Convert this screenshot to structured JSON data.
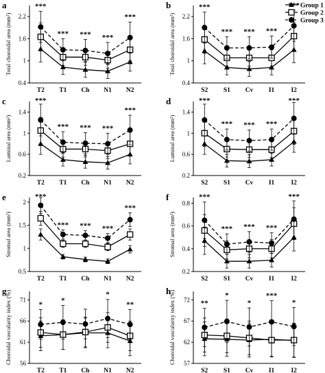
{
  "legend": {
    "entries": [
      {
        "label": "Group 1",
        "marker": "triangle",
        "line": "solid"
      },
      {
        "label": "Group 2",
        "marker": "open-square",
        "line": "solid"
      },
      {
        "label": "Group 3",
        "marker": "circle",
        "line": "dashed"
      }
    ]
  },
  "colors": {
    "ink": "#000000",
    "background": "#ffffff"
  },
  "chart_data": [
    {
      "panel": "a",
      "type": "line",
      "ylabel": "Total choroidal area (mm²)",
      "categories": [
        "T2",
        "T1",
        "Ch",
        "N1",
        "N2"
      ],
      "yticks": [
        0.4,
        1,
        1.6,
        2.2
      ],
      "ylim": [
        0.4,
        2.5
      ],
      "series": [
        {
          "name": "Group 1",
          "values": [
            1.32,
            0.83,
            0.76,
            0.72,
            0.97
          ],
          "errors": [
            0.35,
            0.2,
            0.2,
            0.2,
            0.25
          ]
        },
        {
          "name": "Group 2",
          "values": [
            1.65,
            1.1,
            1.1,
            1.02,
            1.3
          ],
          "errors": [
            0.38,
            0.22,
            0.22,
            0.22,
            0.3
          ]
        },
        {
          "name": "Group 3",
          "values": [
            1.92,
            1.3,
            1.28,
            1.2,
            1.63
          ],
          "errors": [
            0.42,
            0.3,
            0.3,
            0.3,
            0.42
          ]
        }
      ],
      "annotations": [
        "***",
        "***",
        "***",
        "***",
        "***"
      ]
    },
    {
      "panel": "b",
      "type": "line",
      "ylabel": "Total choroidal area (mm²)",
      "categories": [
        "S2",
        "S1",
        "Cv",
        "I1",
        "I2"
      ],
      "yticks": [
        0.4,
        1,
        1.6,
        2.2
      ],
      "ylim": [
        0.4,
        2.5
      ],
      "series": [
        {
          "name": "Group 1",
          "values": [
            1.27,
            0.82,
            0.78,
            0.82,
            1.3
          ],
          "errors": [
            0.35,
            0.2,
            0.2,
            0.2,
            0.35
          ]
        },
        {
          "name": "Group 2",
          "values": [
            1.58,
            1.08,
            1.08,
            1.08,
            1.67
          ],
          "errors": [
            0.38,
            0.22,
            0.22,
            0.22,
            0.38
          ]
        },
        {
          "name": "Group 3",
          "values": [
            1.9,
            1.35,
            1.35,
            1.37,
            1.95
          ],
          "errors": [
            0.42,
            0.3,
            0.3,
            0.3,
            0.42
          ]
        }
      ],
      "annotations": [
        "***",
        "***",
        "***",
        "***",
        "***"
      ]
    },
    {
      "panel": "c",
      "type": "line",
      "ylabel": "Luminal area (mm²)",
      "categories": [
        "T2",
        "T1",
        "Ch",
        "N1",
        "N2"
      ],
      "yticks": [
        0.2,
        0.6,
        1,
        1.4
      ],
      "ylim": [
        0.2,
        1.6
      ],
      "series": [
        {
          "name": "Group 1",
          "values": [
            0.8,
            0.5,
            0.46,
            0.44,
            0.6
          ],
          "errors": [
            0.2,
            0.12,
            0.12,
            0.12,
            0.18
          ]
        },
        {
          "name": "Group 2",
          "values": [
            1.05,
            0.7,
            0.7,
            0.67,
            0.8
          ],
          "errors": [
            0.25,
            0.15,
            0.15,
            0.15,
            0.22
          ]
        },
        {
          "name": "Group 3",
          "values": [
            1.25,
            0.83,
            0.81,
            0.8,
            1.06
          ],
          "errors": [
            0.3,
            0.2,
            0.2,
            0.2,
            0.28
          ]
        }
      ],
      "annotations": [
        "***",
        "***",
        "***",
        "***",
        "***"
      ]
    },
    {
      "panel": "d",
      "type": "line",
      "ylabel": "Luminal area (mm²)",
      "categories": [
        "S2",
        "S1",
        "Cv",
        "I1",
        "I2"
      ],
      "yticks": [
        0.2,
        0.6,
        1,
        1.4
      ],
      "ylim": [
        0.2,
        1.6
      ],
      "series": [
        {
          "name": "Group 1",
          "values": [
            0.8,
            0.48,
            0.47,
            0.5,
            0.84
          ],
          "errors": [
            0.2,
            0.12,
            0.12,
            0.12,
            0.2
          ]
        },
        {
          "name": "Group 2",
          "values": [
            1.0,
            0.7,
            0.69,
            0.69,
            1.04
          ],
          "errors": [
            0.25,
            0.15,
            0.15,
            0.15,
            0.25
          ]
        },
        {
          "name": "Group 3",
          "values": [
            1.25,
            0.88,
            0.86,
            0.88,
            1.28
          ],
          "errors": [
            0.3,
            0.2,
            0.2,
            0.2,
            0.3
          ]
        }
      ],
      "annotations": [
        "***",
        "***",
        "***",
        "***",
        "***"
      ]
    },
    {
      "panel": "e",
      "type": "line",
      "ylabel": "Stromal area (mm²)",
      "categories": [
        "T2",
        "T1",
        "Ch",
        "N1",
        "N2"
      ],
      "yticks": [
        0.5,
        1,
        1.5,
        2
      ],
      "ylim": [
        0.5,
        2.1
      ],
      "series": [
        {
          "name": "Group 1",
          "values": [
            1.3,
            0.82,
            0.76,
            0.72,
            0.98
          ],
          "errors": [
            0.12,
            0.05,
            0.05,
            0.05,
            0.08
          ]
        },
        {
          "name": "Group 2",
          "values": [
            1.65,
            1.1,
            1.1,
            1.03,
            1.3
          ],
          "errors": [
            0.15,
            0.08,
            0.08,
            0.08,
            0.12
          ]
        },
        {
          "name": "Group 3",
          "values": [
            1.93,
            1.3,
            1.28,
            1.22,
            1.62
          ],
          "errors": [
            0.18,
            0.1,
            0.1,
            0.1,
            0.15
          ]
        }
      ],
      "annotations": [
        "***",
        "***",
        "***",
        "***",
        "***"
      ]
    },
    {
      "panel": "f",
      "type": "line",
      "ylabel": "Stromal area (mm²)",
      "categories": [
        "S2",
        "S1",
        "Cv",
        "I1",
        "I2"
      ],
      "yticks": [
        0.2,
        0.4,
        0.6,
        0.8
      ],
      "ylim": [
        0.2,
        0.85
      ],
      "series": [
        {
          "name": "Group 1",
          "values": [
            0.47,
            0.29,
            0.29,
            0.3,
            0.5
          ],
          "errors": [
            0.12,
            0.06,
            0.06,
            0.06,
            0.12
          ]
        },
        {
          "name": "Group 2",
          "values": [
            0.56,
            0.39,
            0.4,
            0.4,
            0.62
          ],
          "errors": [
            0.14,
            0.08,
            0.08,
            0.08,
            0.14
          ]
        },
        {
          "name": "Group 3",
          "values": [
            0.65,
            0.44,
            0.46,
            0.45,
            0.66
          ],
          "errors": [
            0.16,
            0.09,
            0.09,
            0.09,
            0.16
          ]
        }
      ],
      "annotations": [
        "***",
        "***",
        "***",
        "***",
        "***"
      ]
    },
    {
      "panel": "g",
      "type": "line",
      "ylabel": "Choroidal vascularity index (%)",
      "categories": [
        "T2",
        "T1",
        "Ch",
        "N1",
        "N2"
      ],
      "yticks": [
        56,
        61,
        66,
        71
      ],
      "ylim": [
        56,
        73
      ],
      "series": [
        {
          "name": "Group 1",
          "values": [
            62.5,
            62.8,
            63.2,
            63.2,
            61.3
          ],
          "errors": [
            3.5,
            3.5,
            3.5,
            3.5,
            3.5
          ]
        },
        {
          "name": "Group 2",
          "values": [
            63.3,
            62.8,
            63.4,
            64.5,
            62.5
          ],
          "errors": [
            3.5,
            3.5,
            3.5,
            3.5,
            3.5
          ]
        },
        {
          "name": "Group 3",
          "values": [
            65.2,
            65.7,
            65.3,
            66.6,
            65.2
          ],
          "errors": [
            3.5,
            4.0,
            3.5,
            4.5,
            3.5
          ]
        }
      ],
      "annotations": [
        "*",
        "*",
        "",
        "*",
        "**"
      ]
    },
    {
      "panel": "h",
      "type": "line",
      "ylabel": "Choroidal vascularity index (%)",
      "categories": [
        "S2",
        "S1",
        "Cv",
        "I1",
        "I2"
      ],
      "yticks": [
        57,
        62,
        67,
        72
      ],
      "ylim": [
        57,
        74
      ],
      "series": [
        {
          "name": "Group 1",
          "values": [
            62.8,
            62.7,
            62.5,
            62.7,
            62.4
          ],
          "errors": [
            4.0,
            4.0,
            4.0,
            4.0,
            4.0
          ]
        },
        {
          "name": "Group 2",
          "values": [
            63.7,
            63.5,
            63.0,
            62.5,
            62.5
          ],
          "errors": [
            4.0,
            4.0,
            4.0,
            4.0,
            4.0
          ]
        },
        {
          "name": "Group 3",
          "values": [
            65.5,
            66.9,
            65.6,
            66.8,
            65.7
          ],
          "errors": [
            4.5,
            5.0,
            4.5,
            5.0,
            4.5
          ]
        }
      ],
      "annotations": [
        "**",
        "*",
        "*",
        "***",
        "*"
      ]
    }
  ]
}
